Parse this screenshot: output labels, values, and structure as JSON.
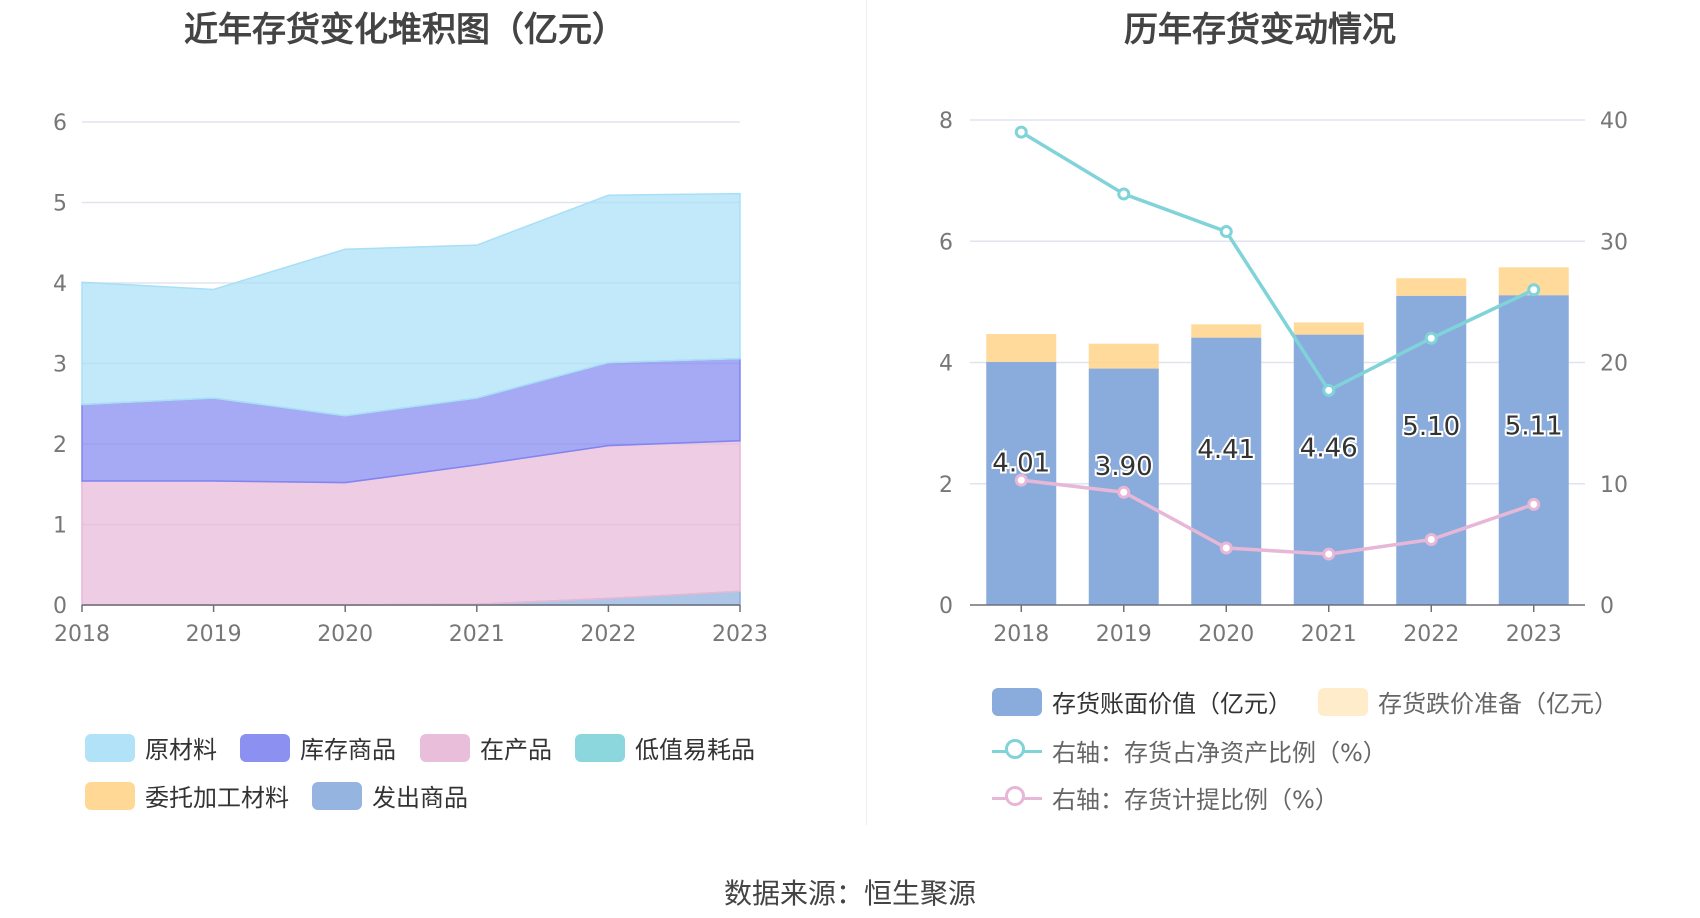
{
  "left_title": "近年存货变化堆积图（亿元）",
  "right_title": "历年存货变动情况",
  "source": "数据来源：恒生聚源",
  "chart_data": [
    {
      "type": "area",
      "stacked": true,
      "title": "近年存货变化堆积图（亿元）",
      "x": [
        "2018",
        "2019",
        "2020",
        "2021",
        "2022",
        "2023"
      ],
      "ylim": [
        0,
        6
      ],
      "yticks": [
        "0",
        "1",
        "2",
        "3",
        "4",
        "5",
        "6"
      ],
      "grid": true,
      "legend_position": "bottom",
      "series": [
        {
          "name": "原材料",
          "color": "#a8dff7",
          "values": [
            1.52,
            1.35,
            2.07,
            1.9,
            2.08,
            2.05
          ]
        },
        {
          "name": "库存商品",
          "color": "#8085f0",
          "values": [
            0.95,
            1.03,
            0.83,
            0.83,
            1.03,
            1.02
          ]
        },
        {
          "name": "在产品",
          "color": "#e7b7d7",
          "values": [
            1.54,
            1.54,
            1.52,
            1.73,
            1.9,
            1.87
          ]
        },
        {
          "name": "低值易耗品",
          "color": "#7fd3d9",
          "values": [
            0,
            0,
            0,
            0,
            0,
            0
          ]
        },
        {
          "name": "委托加工材料",
          "color": "#ffd48a",
          "values": [
            0,
            0,
            0,
            0,
            0,
            0
          ]
        },
        {
          "name": "发出商品",
          "color": "#8aacdc",
          "values": [
            0,
            0,
            0,
            0.01,
            0.08,
            0.17
          ]
        }
      ]
    },
    {
      "type": "bar",
      "stacked": true,
      "title": "历年存货变动情况",
      "categories": [
        "2018",
        "2019",
        "2020",
        "2021",
        "2022",
        "2023"
      ],
      "ylim_left": [
        0,
        8
      ],
      "yticks_left": [
        "0",
        "2",
        "4",
        "6",
        "8"
      ],
      "ylim_right": [
        0,
        40
      ],
      "yticks_right": [
        "0",
        "10",
        "20",
        "30",
        "40"
      ],
      "legend_position": "bottom",
      "series": [
        {
          "name": "存货账面价值（亿元）",
          "type": "bar",
          "color": "#8aacdc",
          "values": [
            4.01,
            3.9,
            4.41,
            4.46,
            5.1,
            5.11
          ],
          "labels": [
            "4.01",
            "3.90",
            "4.41",
            "4.46",
            "5.10",
            "5.11"
          ]
        },
        {
          "name": "存货跌价准备（亿元）",
          "type": "bar",
          "color": "#ffd48a",
          "values": [
            0.46,
            0.41,
            0.22,
            0.2,
            0.29,
            0.46
          ]
        },
        {
          "name": "右轴：存货占净资产比例（%）",
          "type": "line",
          "axis": "right",
          "color": "#7fd3d9",
          "values": [
            39.0,
            33.9,
            30.8,
            17.7,
            22.0,
            26.0
          ]
        },
        {
          "name": "右轴：存货计提比例（%）",
          "type": "line",
          "axis": "right",
          "color": "#e7b7d7",
          "values": [
            10.3,
            9.3,
            4.7,
            4.2,
            5.4,
            8.3
          ]
        }
      ]
    }
  ]
}
